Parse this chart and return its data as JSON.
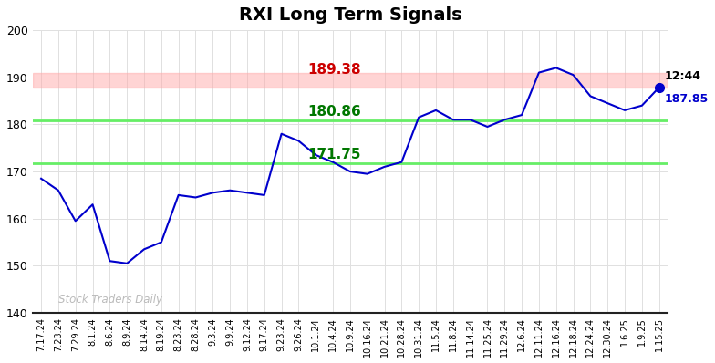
{
  "title": "RXI Long Term Signals",
  "title_fontsize": 14,
  "background_color": "#ffffff",
  "line_color": "#0000cc",
  "line_width": 1.5,
  "ylim": [
    140,
    200
  ],
  "yticks": [
    140,
    150,
    160,
    170,
    180,
    190,
    200
  ],
  "red_hline": 189.38,
  "green_hline_upper": 180.86,
  "green_hline_lower": 171.75,
  "red_hline_color": "#ffaaaa",
  "green_hline_color": "#66ee66",
  "annotation_red_text": "189.38",
  "annotation_red_color": "#cc0000",
  "annotation_green_upper_text": "180.86",
  "annotation_green_lower_text": "171.75",
  "annotation_green_color": "#007700",
  "last_time_text": "12:44",
  "last_price_text": "187.85",
  "last_price_value": 187.85,
  "last_dot_color": "#0000cc",
  "watermark_text": "Stock Traders Daily",
  "watermark_color": "#bbbbbb",
  "x_labels": [
    "7.17.24",
    "7.23.24",
    "7.29.24",
    "8.1.24",
    "8.6.24",
    "8.9.24",
    "8.14.24",
    "8.19.24",
    "8.23.24",
    "8.28.24",
    "9.3.24",
    "9.9.24",
    "9.12.24",
    "9.17.24",
    "9.23.24",
    "9.26.24",
    "10.1.24",
    "10.4.24",
    "10.9.24",
    "10.16.24",
    "10.21.24",
    "10.28.24",
    "10.31.24",
    "11.5.24",
    "11.8.24",
    "11.14.24",
    "11.25.24",
    "11.29.24",
    "12.6.24",
    "12.11.24",
    "12.16.24",
    "12.18.24",
    "12.24.24",
    "12.30.24",
    "1.6.25",
    "1.9.25",
    "1.15.25"
  ],
  "prices": [
    168.5,
    166.0,
    159.5,
    163.0,
    151.0,
    150.5,
    153.5,
    155.0,
    165.0,
    164.5,
    165.5,
    166.0,
    165.5,
    165.0,
    178.0,
    176.5,
    173.5,
    172.0,
    170.0,
    169.5,
    171.0,
    172.0,
    181.5,
    183.0,
    181.0,
    181.0,
    179.5,
    181.0,
    182.0,
    191.0,
    192.0,
    190.5,
    186.0,
    184.5,
    183.0,
    184.0,
    187.85
  ]
}
